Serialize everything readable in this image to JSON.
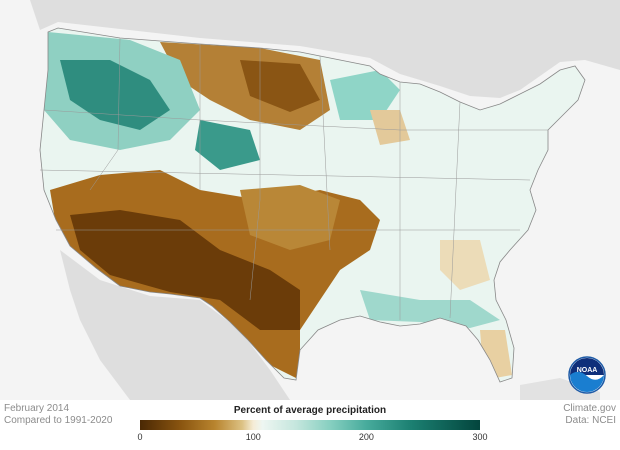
{
  "caption": {
    "date": "February 2014",
    "baseline": "Compared to 1991-2020"
  },
  "credits": {
    "source": "Climate.gov",
    "data": "Data: NCEI"
  },
  "legend": {
    "title": "Percent of average precipitation",
    "min": 0,
    "max": 300,
    "ticks": [
      {
        "label": "0"
      },
      {
        "label": "100"
      },
      {
        "label": "200"
      },
      {
        "label": "300"
      }
    ],
    "colors": {
      "dry_extreme": "#4a2804",
      "dry": "#b8842e",
      "normal": "#f5ecd6",
      "wet": "#47ab9c",
      "wet_extreme": "#03453d"
    }
  },
  "logo": {
    "text": "NOAA",
    "icon": "noaa-logo"
  },
  "map": {
    "land_color": "#d9d9d9",
    "background_color": "#f4f4f4"
  }
}
